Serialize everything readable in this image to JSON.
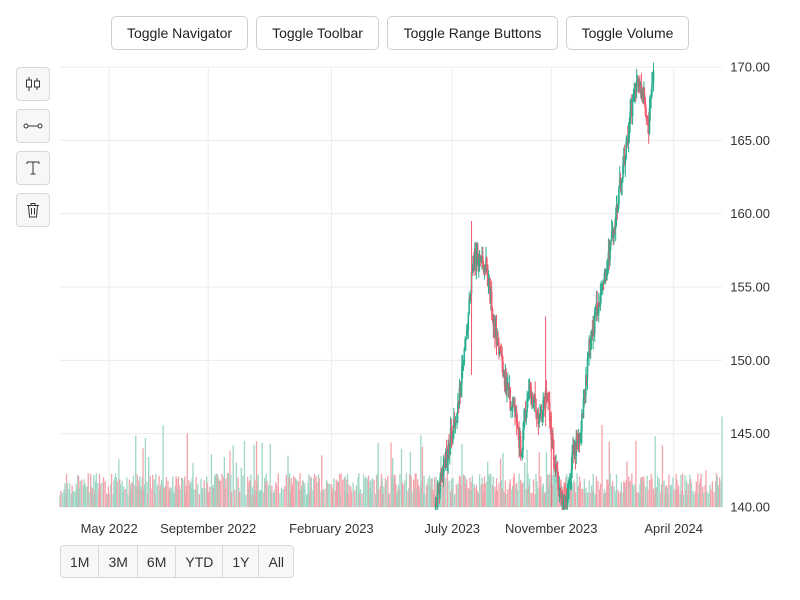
{
  "toolbar_top": {
    "buttons": [
      {
        "id": "navigator",
        "label": "Toggle Navigator"
      },
      {
        "id": "toolbar",
        "label": "Toggle Toolbar"
      },
      {
        "id": "range",
        "label": "Toggle Range Buttons"
      },
      {
        "id": "volume",
        "label": "Toggle Volume"
      }
    ]
  },
  "side_toolbar": {
    "tools": [
      {
        "id": "candlestick",
        "icon": "candlestick-icon"
      },
      {
        "id": "line",
        "icon": "line-segment-icon"
      },
      {
        "id": "text",
        "icon": "text-icon"
      },
      {
        "id": "delete",
        "icon": "trash-icon"
      }
    ]
  },
  "range_selector": {
    "buttons": [
      "1M",
      "3M",
      "6M",
      "YTD",
      "1Y",
      "All"
    ]
  },
  "colors": {
    "up": "#2caf8f",
    "down": "#f05a6e",
    "up_volume": "#9fd6c5",
    "down_volume": "#f4a3ab",
    "grid": "#ececec"
  },
  "chart_data": {
    "type": "candlestick",
    "y_axis": {
      "position": "right",
      "range": [
        140,
        170
      ],
      "ticks": [
        "140.00",
        "145.00",
        "150.00",
        "155.00",
        "160.00",
        "165.00",
        "170.00"
      ]
    },
    "x_axis": {
      "range": [
        "2022-03-01",
        "2024-05-31"
      ],
      "ticks": [
        {
          "label": "May 2022",
          "date": "2022-05-01"
        },
        {
          "label": "September 2022",
          "date": "2022-09-01"
        },
        {
          "label": "February 2023",
          "date": "2023-02-01"
        },
        {
          "label": "July 2023",
          "date": "2023-07-01"
        },
        {
          "label": "November 2023",
          "date": "2023-11-01"
        },
        {
          "label": "April 2024",
          "date": "2024-04-01"
        }
      ]
    },
    "grid": true,
    "volume": true,
    "price_path": [
      {
        "date": "2023-06-10",
        "close": 140.0
      },
      {
        "date": "2023-07-10",
        "close": 147.5
      },
      {
        "date": "2023-07-28",
        "close": 157.0
      },
      {
        "date": "2023-08-12",
        "close": 156.5
      },
      {
        "date": "2023-08-25",
        "close": 151.5
      },
      {
        "date": "2023-09-05",
        "close": 148.5
      },
      {
        "date": "2023-09-18",
        "close": 146.0
      },
      {
        "date": "2023-09-25",
        "close": 143.5
      },
      {
        "date": "2023-10-03",
        "close": 148.0
      },
      {
        "date": "2023-10-10",
        "close": 147.5
      },
      {
        "date": "2023-10-17",
        "close": 145.5
      },
      {
        "date": "2023-10-27",
        "close": 148.0
      },
      {
        "date": "2023-11-03",
        "close": 144.0
      },
      {
        "date": "2023-11-10",
        "close": 141.0
      },
      {
        "date": "2023-11-18",
        "close": 140.0
      },
      {
        "date": "2023-11-28",
        "close": 143.5
      },
      {
        "date": "2023-12-07",
        "close": 145.0
      },
      {
        "date": "2023-12-17",
        "close": 150.5
      },
      {
        "date": "2023-12-28",
        "close": 153.5
      },
      {
        "date": "2024-01-08",
        "close": 156.0
      },
      {
        "date": "2024-01-20",
        "close": 160.0
      },
      {
        "date": "2024-01-30",
        "close": 163.5
      },
      {
        "date": "2024-02-08",
        "close": 167.0
      },
      {
        "date": "2024-02-16",
        "close": 169.5
      },
      {
        "date": "2024-02-23",
        "close": 168.0
      },
      {
        "date": "2024-03-01",
        "close": 166.0
      },
      {
        "date": "2024-03-07",
        "close": 170.0
      }
    ]
  }
}
